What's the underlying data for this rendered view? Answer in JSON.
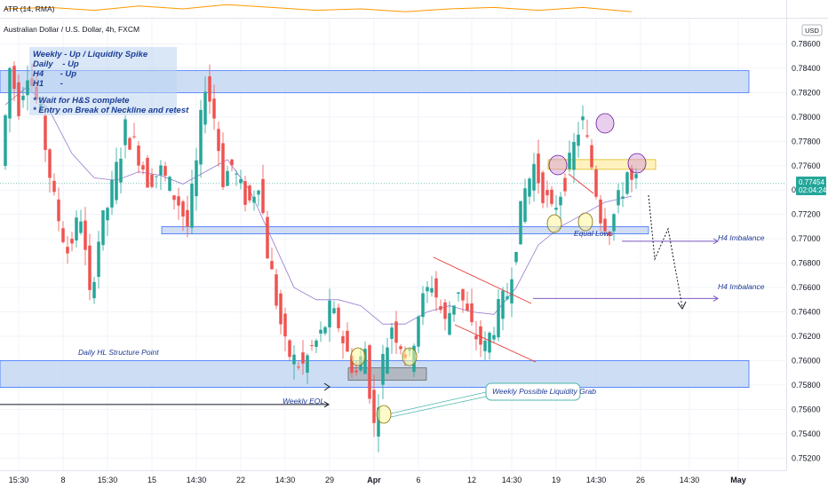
{
  "header": {
    "indicator_label": "ATR (14, RMA)",
    "symbol_title": "Australian Dollar / U.S. Dollar, 4h, FXCM",
    "currency_badge": "USD"
  },
  "price_tag": {
    "price": "0.77454",
    "countdown": "02:04:24"
  },
  "notes": {
    "bias_lines": [
      "Weekly - Up / Liquidity Spike",
      "Daily    - Up",
      "H4       - Up",
      "H1       -"
    ],
    "plan_lines": [
      "* Wait for H&S complete",
      "* Entry on Break of Neckline and retest"
    ]
  },
  "annotations": {
    "daily_hl": "Daily HL Structure Point",
    "weekly_eql": "Weekly EQL",
    "liquidity_grab": "Weekly Possible Liquidity Grab",
    "equal_lows": "Equal Lows",
    "h4_imbalance_1": "H4 Imbalance",
    "h4_imbalance_2": "H4 Imbalance"
  },
  "chart_data": {
    "type": "candlestick",
    "symbol": "AUD/USD",
    "timeframe": "4h",
    "ylim": [
      0.751,
      0.788
    ],
    "y_ticks": [
      "0.78600",
      "0.78400",
      "0.78200",
      "0.78000",
      "0.77800",
      "0.77600",
      "0.77400",
      "0.77200",
      "0.77000",
      "0.76800",
      "0.76600",
      "0.76400",
      "0.76200",
      "0.76000",
      "0.75800",
      "0.75600",
      "0.75400",
      "0.75200"
    ],
    "y_tick_values": [
      0.786,
      0.784,
      0.782,
      0.78,
      0.778,
      0.776,
      0.774,
      0.772,
      0.77,
      0.768,
      0.766,
      0.764,
      0.762,
      0.76,
      0.758,
      0.756,
      0.754,
      0.752
    ],
    "x_ticks": [
      "15:30",
      "8",
      "15:30",
      "15",
      "14:30",
      "22",
      "14:30",
      "29",
      "Apr",
      "6",
      "12",
      "14:30",
      "19",
      "14:30",
      "26",
      "14:30",
      "May"
    ],
    "x_tick_index": [
      3,
      13,
      23,
      33,
      43,
      53,
      63,
      73,
      83,
      93,
      105,
      114,
      124,
      133,
      143,
      154,
      165
    ],
    "current_price": 0.77454,
    "price_path": [
      [
        0,
        0.776
      ],
      [
        2,
        0.784
      ],
      [
        4,
        0.781
      ],
      [
        6,
        0.784
      ],
      [
        9,
        0.78
      ],
      [
        12,
        0.773
      ],
      [
        15,
        0.769
      ],
      [
        18,
        0.772
      ],
      [
        20,
        0.765
      ],
      [
        22,
        0.77
      ],
      [
        25,
        0.774
      ],
      [
        28,
        0.779
      ],
      [
        31,
        0.777
      ],
      [
        33,
        0.775
      ],
      [
        36,
        0.7755
      ],
      [
        40,
        0.773
      ],
      [
        42,
        0.771
      ],
      [
        44,
        0.776
      ],
      [
        46,
        0.783
      ],
      [
        48,
        0.78
      ],
      [
        50,
        0.775
      ],
      [
        52,
        0.776
      ],
      [
        54,
        0.774
      ],
      [
        56,
        0.773
      ],
      [
        58,
        0.775
      ],
      [
        60,
        0.769
      ],
      [
        62,
        0.765
      ],
      [
        64,
        0.761
      ],
      [
        66,
        0.76
      ],
      [
        68,
        0.7595
      ],
      [
        70,
        0.761
      ],
      [
        72,
        0.762
      ],
      [
        74,
        0.764
      ],
      [
        76,
        0.763
      ],
      [
        78,
        0.7605
      ],
      [
        80,
        0.759
      ],
      [
        82,
        0.761
      ],
      [
        84,
        0.7545
      ],
      [
        86,
        0.76
      ],
      [
        88,
        0.763
      ],
      [
        90,
        0.7615
      ],
      [
        92,
        0.76
      ],
      [
        94,
        0.764
      ],
      [
        97,
        0.7665
      ],
      [
        100,
        0.763
      ],
      [
        103,
        0.766
      ],
      [
        106,
        0.7625
      ],
      [
        109,
        0.761
      ],
      [
        112,
        0.764
      ],
      [
        114,
        0.7655
      ],
      [
        116,
        0.77
      ],
      [
        118,
        0.774
      ],
      [
        120,
        0.776
      ],
      [
        122,
        0.774
      ],
      [
        124,
        0.772
      ],
      [
        126,
        0.774
      ],
      [
        128,
        0.776
      ],
      [
        130,
        0.779
      ],
      [
        131,
        0.7795
      ],
      [
        133,
        0.776
      ],
      [
        135,
        0.772
      ],
      [
        137,
        0.771
      ],
      [
        139,
        0.773
      ],
      [
        141,
        0.7755
      ],
      [
        142,
        0.7745
      ]
    ],
    "moving_average": [
      [
        0,
        0.781
      ],
      [
        5,
        0.7825
      ],
      [
        10,
        0.7805
      ],
      [
        15,
        0.777
      ],
      [
        20,
        0.775
      ],
      [
        25,
        0.7748
      ],
      [
        30,
        0.7755
      ],
      [
        35,
        0.7752
      ],
      [
        40,
        0.7745
      ],
      [
        45,
        0.7755
      ],
      [
        50,
        0.7765
      ],
      [
        55,
        0.774
      ],
      [
        60,
        0.77
      ],
      [
        65,
        0.766
      ],
      [
        70,
        0.765
      ],
      [
        75,
        0.765
      ],
      [
        80,
        0.7645
      ],
      [
        85,
        0.763
      ],
      [
        90,
        0.763
      ],
      [
        95,
        0.764
      ],
      [
        100,
        0.7645
      ],
      [
        105,
        0.764
      ],
      [
        110,
        0.7638
      ],
      [
        115,
        0.766
      ],
      [
        120,
        0.7695
      ],
      [
        125,
        0.771
      ],
      [
        130,
        0.772
      ],
      [
        135,
        0.773
      ],
      [
        141,
        0.7735
      ]
    ],
    "atr_line": [
      [
        0,
        0.5
      ],
      [
        10,
        0.6
      ],
      [
        20,
        0.4
      ],
      [
        30,
        0.7
      ],
      [
        40,
        0.5
      ],
      [
        50,
        0.8
      ],
      [
        60,
        0.6
      ],
      [
        70,
        0.4
      ],
      [
        80,
        0.5
      ],
      [
        90,
        0.3
      ],
      [
        100,
        0.5
      ],
      [
        110,
        0.6
      ],
      [
        120,
        0.4
      ],
      [
        130,
        0.6
      ],
      [
        141,
        0.3
      ]
    ],
    "zones": [
      {
        "name": "supply-zone",
        "y0": 0.782,
        "y1": 0.7838
      },
      {
        "name": "daily-hl-zone",
        "y0": 0.7578,
        "y1": 0.76
      },
      {
        "name": "neckline-zone",
        "y0": 0.7704,
        "y1": 0.771
      },
      {
        "name": "shoulder-zone",
        "y0": 0.7757,
        "y1": 0.7765
      }
    ],
    "levels": [
      {
        "name": "h4-imbalance-1",
        "y": 0.7698
      },
      {
        "name": "h4-imbalance-2",
        "y": 0.7651
      },
      {
        "name": "weekly-eql",
        "y": 0.7564
      }
    ]
  }
}
